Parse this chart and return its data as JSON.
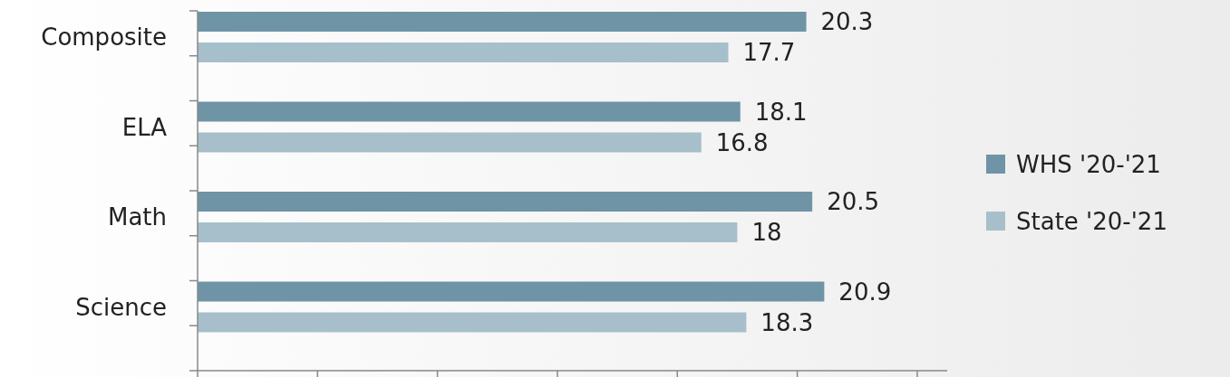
{
  "chart_data": {
    "type": "bar",
    "orientation": "horizontal",
    "categories": [
      "Composite",
      "ELA",
      "Math",
      "Science"
    ],
    "series": [
      {
        "name": "WHS '20-'21",
        "color": "#6f94a5",
        "values": [
          20.3,
          18.1,
          20.5,
          20.9
        ]
      },
      {
        "name": "State '20-'21",
        "color": "#a7bfcb",
        "values": [
          17.7,
          16.8,
          18,
          18.3
        ]
      }
    ],
    "xlim": [
      0,
      25
    ],
    "xticks": [
      {
        "value": 0,
        "label": null
      },
      {
        "value": 4,
        "label": null
      },
      {
        "value": 8,
        "label": null
      },
      {
        "value": 12,
        "label": null
      },
      {
        "value": 16,
        "label": null
      },
      {
        "value": 20,
        "label": null
      },
      {
        "value": 24,
        "label": null
      }
    ],
    "tick_labels": "y",
    "data_labels": true,
    "legend": "right",
    "grid": false
  }
}
